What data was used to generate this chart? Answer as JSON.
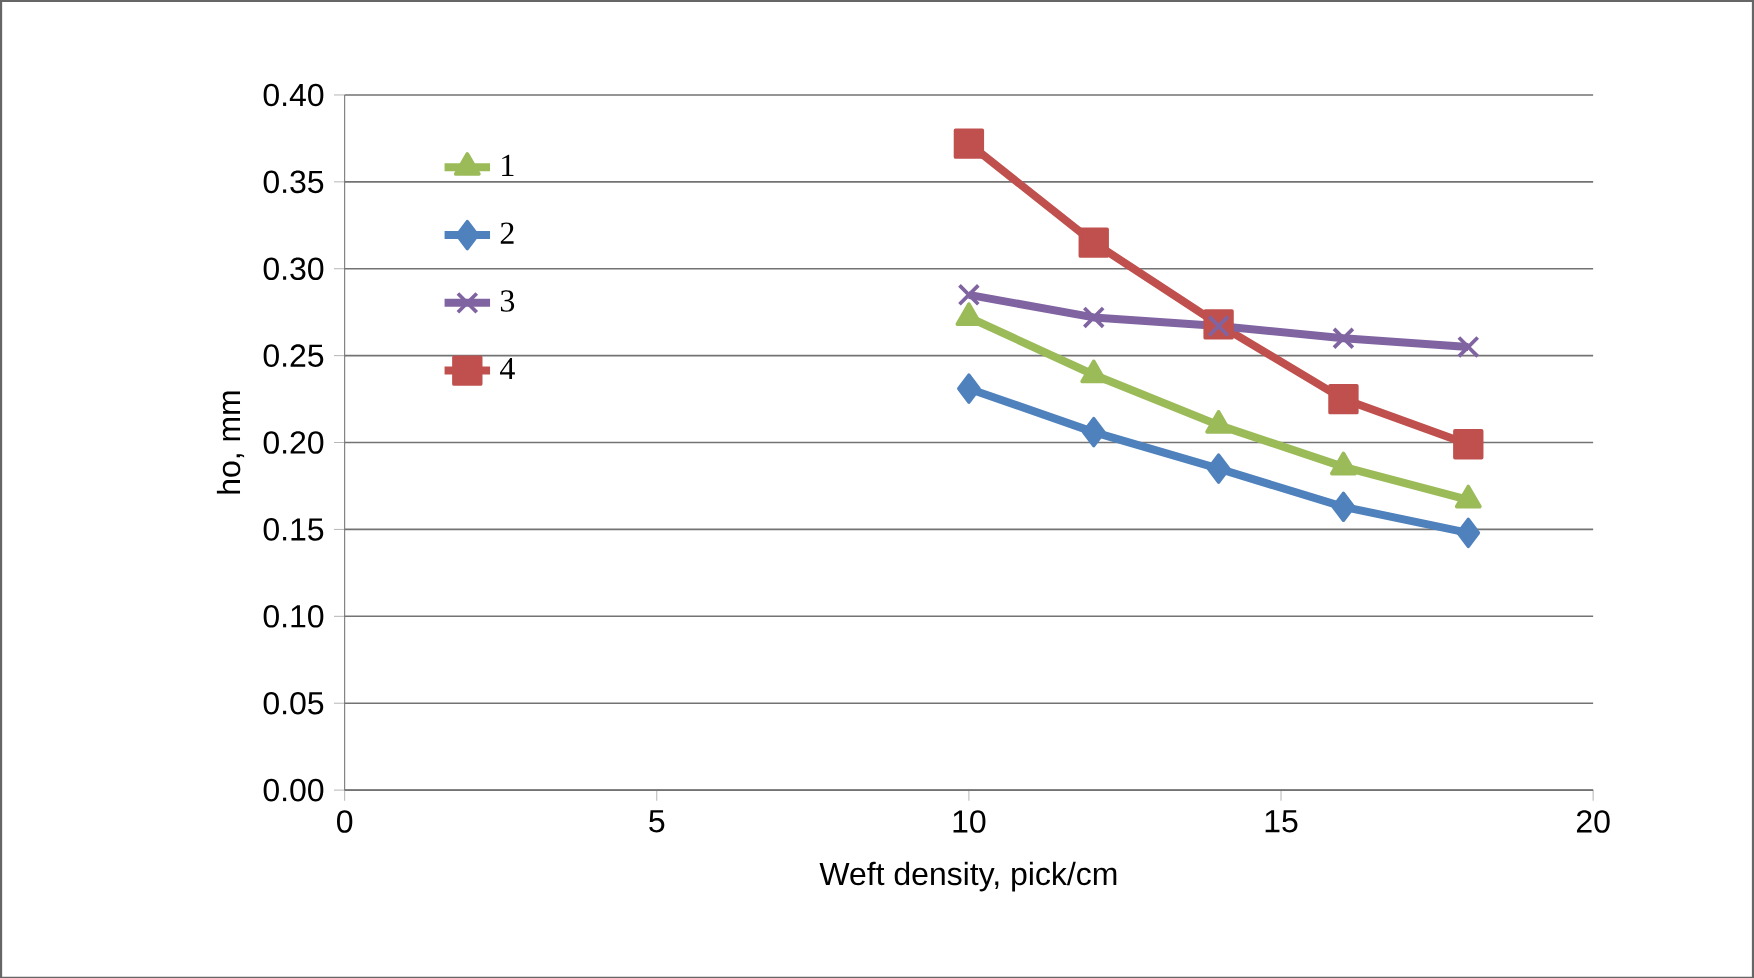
{
  "chart_data": {
    "type": "line",
    "xlabel": "Weft density, pick/cm",
    "ylabel": "ho, mm",
    "xlim": [
      0,
      20
    ],
    "xticks": [
      0,
      5,
      10,
      15,
      20
    ],
    "ylim": [
      0,
      0.4
    ],
    "yticks": [
      {
        "value": 0,
        "label": "0.00"
      },
      {
        "value": 0.05,
        "label": "0.05"
      },
      {
        "value": 0.1,
        "label": "0.10"
      },
      {
        "value": 0.15,
        "label": "0.15"
      },
      {
        "value": 0.2,
        "label": "0.20"
      },
      {
        "value": 0.25,
        "label": "0.25"
      },
      {
        "value": 0.3,
        "label": "0.30"
      },
      {
        "value": 0.35,
        "label": "0.35"
      },
      {
        "value": 0.4,
        "label": "0.40"
      }
    ],
    "grid": "y",
    "legend": "top left",
    "line_style": "solid",
    "x": [
      10,
      12,
      14,
      16,
      18
    ],
    "series": [
      {
        "name": "1",
        "color": "#9bbb59",
        "marker": "triangle",
        "values": [
          0.272,
          0.239,
          0.21,
          0.186,
          0.167
        ]
      },
      {
        "name": "2",
        "color": "#4f81bd",
        "marker": "diamond",
        "values": [
          0.231,
          0.206,
          0.185,
          0.163,
          0.148
        ]
      },
      {
        "name": "3",
        "color": "#8064a2",
        "marker": "cross",
        "values": [
          0.285,
          0.272,
          0.267,
          0.26,
          0.255
        ]
      },
      {
        "name": "4",
        "color": "#c0504d",
        "marker": "square",
        "values": [
          0.372,
          0.315,
          0.268,
          0.225,
          0.199
        ]
      }
    ]
  }
}
